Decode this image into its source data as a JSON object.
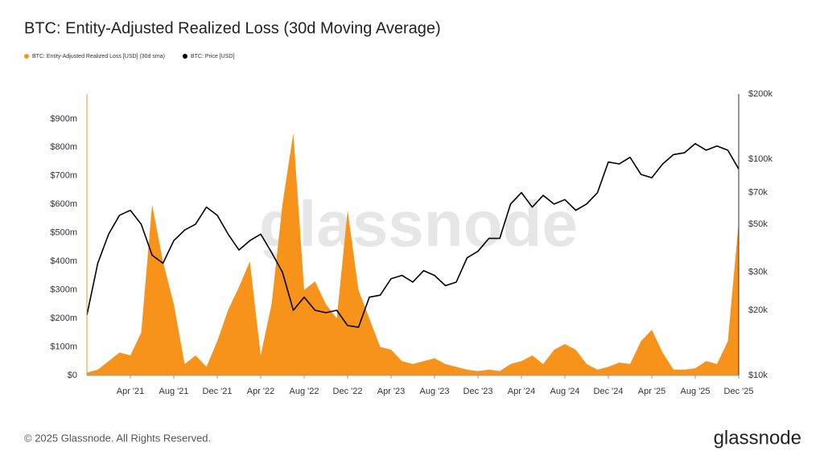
{
  "chart_data": {
    "type": "combo",
    "title": "BTC: Entity-Adjusted Realized Loss (30d Moving Average)",
    "watermark": "glassnode",
    "footer": "© 2025 Glassnode. All Rights Reserved.",
    "logo": "glassnode",
    "x": [
      "2020-12",
      "2021-01",
      "2021-02",
      "2021-03",
      "2021-04",
      "2021-05",
      "2021-06",
      "2021-07",
      "2021-08",
      "2021-09",
      "2021-10",
      "2021-11",
      "2021-12",
      "2022-01",
      "2022-02",
      "2022-03",
      "2022-04",
      "2022-05",
      "2022-06",
      "2022-07",
      "2022-08",
      "2022-09",
      "2022-10",
      "2022-11",
      "2022-12",
      "2023-01",
      "2023-02",
      "2023-03",
      "2023-04",
      "2023-05",
      "2023-06",
      "2023-07",
      "2023-08",
      "2023-09",
      "2023-10",
      "2023-11",
      "2023-12",
      "2024-01",
      "2024-02",
      "2024-03",
      "2024-04",
      "2024-05",
      "2024-06",
      "2024-07",
      "2024-08",
      "2024-09",
      "2024-10",
      "2024-11",
      "2024-12",
      "2025-01",
      "2025-02",
      "2025-03",
      "2025-04",
      "2025-05",
      "2025-06",
      "2025-07",
      "2025-08",
      "2025-09",
      "2025-10",
      "2025-11",
      "2025-12"
    ],
    "xticks": [
      {
        "value": "2021-04",
        "label": "Apr '21"
      },
      {
        "value": "2021-08",
        "label": "Aug '21"
      },
      {
        "value": "2021-12",
        "label": "Dec '21"
      },
      {
        "value": "2022-04",
        "label": "Apr '22"
      },
      {
        "value": "2022-08",
        "label": "Aug '22"
      },
      {
        "value": "2022-12",
        "label": "Dec '22"
      },
      {
        "value": "2023-04",
        "label": "Apr '23"
      },
      {
        "value": "2023-08",
        "label": "Aug '23"
      },
      {
        "value": "2023-12",
        "label": "Dec '23"
      },
      {
        "value": "2024-04",
        "label": "Apr '24"
      },
      {
        "value": "2024-08",
        "label": "Aug '24"
      },
      {
        "value": "2024-12",
        "label": "Dec '24"
      },
      {
        "value": "2025-04",
        "label": "Apr '25"
      },
      {
        "value": "2025-08",
        "label": "Aug '25"
      },
      {
        "value": "2025-12",
        "label": "Dec '25"
      }
    ],
    "ylim": [
      0,
      987000000
    ],
    "yticks": [
      {
        "value": 0,
        "label": "$0"
      },
      {
        "value": 100000000,
        "label": "$100m"
      },
      {
        "value": 200000000,
        "label": "$200m"
      },
      {
        "value": 300000000,
        "label": "$300m"
      },
      {
        "value": 400000000,
        "label": "$400m"
      },
      {
        "value": 500000000,
        "label": "$500m"
      },
      {
        "value": 600000000,
        "label": "$600m"
      },
      {
        "value": 700000000,
        "label": "$700m"
      },
      {
        "value": 800000000,
        "label": "$800m"
      },
      {
        "value": 900000000,
        "label": "$900m"
      }
    ],
    "y2lim": [
      10000,
      200000
    ],
    "y2scale": "log",
    "y2ticks": [
      {
        "value": 10000,
        "label": "$10k"
      },
      {
        "value": 20000,
        "label": "$20k"
      },
      {
        "value": 30000,
        "label": "$30k"
      },
      {
        "value": 50000,
        "label": "$50k"
      },
      {
        "value": 70000,
        "label": "$70k"
      },
      {
        "value": 100000,
        "label": "$100k"
      },
      {
        "value": 200000,
        "label": "$200k"
      }
    ],
    "series": [
      {
        "name": "BTC: Entity-Adjusted Realized Loss [USD] (30d sma)",
        "type": "area",
        "color": "#f7931a",
        "values": [
          10000000,
          20000000,
          50000000,
          80000000,
          70000000,
          150000000,
          600000000,
          400000000,
          250000000,
          40000000,
          70000000,
          30000000,
          120000000,
          230000000,
          310000000,
          400000000,
          70000000,
          250000000,
          600000000,
          850000000,
          300000000,
          330000000,
          250000000,
          200000000,
          580000000,
          300000000,
          200000000,
          100000000,
          90000000,
          50000000,
          40000000,
          50000000,
          60000000,
          40000000,
          30000000,
          20000000,
          15000000,
          20000000,
          15000000,
          40000000,
          50000000,
          70000000,
          40000000,
          90000000,
          110000000,
          90000000,
          40000000,
          20000000,
          30000000,
          45000000,
          40000000,
          120000000,
          160000000,
          80000000,
          20000000,
          20000000,
          25000000,
          50000000,
          40000000,
          120000000,
          540000000
        ]
      },
      {
        "name": "BTC: Price [USD]",
        "type": "line",
        "axis": "y2",
        "color": "#000000",
        "values": [
          19000,
          33000,
          45000,
          55000,
          58000,
          50000,
          36000,
          33000,
          42000,
          47000,
          50000,
          60000,
          55000,
          45000,
          38000,
          42000,
          45000,
          37000,
          30000,
          20000,
          23000,
          20000,
          19500,
          20000,
          17000,
          16700,
          23000,
          23500,
          28000,
          29000,
          27000,
          30500,
          29000,
          26000,
          27000,
          35000,
          37500,
          43000,
          43000,
          62000,
          70000,
          60000,
          68000,
          62000,
          65000,
          58000,
          62000,
          70000,
          97000,
          95000,
          102000,
          85000,
          82000,
          95000,
          105000,
          107000,
          118000,
          110000,
          115000,
          110000,
          90000
        ]
      }
    ]
  }
}
